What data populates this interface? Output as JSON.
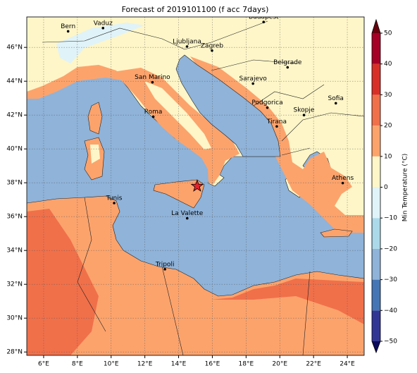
{
  "chart_data": {
    "type": "map",
    "title": "Forecast of 2019101100 (f acc 7days)",
    "xlim": [
      5,
      25
    ],
    "ylim": [
      27.8,
      47.8
    ],
    "xticks": [
      {
        "value": 6,
        "label": "6°E"
      },
      {
        "value": 8,
        "label": "8°E"
      },
      {
        "value": 10,
        "label": "10°E"
      },
      {
        "value": 12,
        "label": "12°E"
      },
      {
        "value": 14,
        "label": "14°E"
      },
      {
        "value": 16,
        "label": "16°E"
      },
      {
        "value": 18,
        "label": "18°E"
      },
      {
        "value": 20,
        "label": "20°E"
      },
      {
        "value": 22,
        "label": "22°E"
      },
      {
        "value": 24,
        "label": "24°E"
      }
    ],
    "yticks": [
      {
        "value": 28,
        "label": "28°N"
      },
      {
        "value": 30,
        "label": "30°N"
      },
      {
        "value": 32,
        "label": "32°N"
      },
      {
        "value": 34,
        "label": "34°N"
      },
      {
        "value": 36,
        "label": "36°N"
      },
      {
        "value": 38,
        "label": "38°N"
      },
      {
        "value": 40,
        "label": "40°N"
      },
      {
        "value": 42,
        "label": "42°N"
      },
      {
        "value": 44,
        "label": "44°N"
      },
      {
        "value": 46,
        "label": "46°N"
      }
    ],
    "grid": true,
    "cities": [
      {
        "name": "Bern",
        "lon": 7.45,
        "lat": 46.95
      },
      {
        "name": "Vaduz",
        "lon": 9.52,
        "lat": 47.14
      },
      {
        "name": "Budapest",
        "lon": 19.04,
        "lat": 47.5
      },
      {
        "name": "Ljubljana",
        "lon": 14.5,
        "lat": 46.05
      },
      {
        "name": "Zagreb",
        "lon": 15.98,
        "lat": 45.81
      },
      {
        "name": "Belgrade",
        "lon": 20.46,
        "lat": 44.82
      },
      {
        "name": "San Marino",
        "lon": 12.45,
        "lat": 43.94
      },
      {
        "name": "Sarajevo",
        "lon": 18.41,
        "lat": 43.86
      },
      {
        "name": "Sofia",
        "lon": 23.32,
        "lat": 42.7
      },
      {
        "name": "Podgorica",
        "lon": 19.26,
        "lat": 42.44
      },
      {
        "name": "Skopje",
        "lon": 21.43,
        "lat": 42.0
      },
      {
        "name": "Roma",
        "lon": 12.5,
        "lat": 41.9
      },
      {
        "name": "Tirana",
        "lon": 19.82,
        "lat": 41.33
      },
      {
        "name": "Athens",
        "lon": 23.73,
        "lat": 37.98
      },
      {
        "name": "Tunis",
        "lon": 10.18,
        "lat": 36.8
      },
      {
        "name": "La Valette",
        "lon": 14.51,
        "lat": 35.9
      },
      {
        "name": "Tripoli",
        "lon": 13.19,
        "lat": 32.89
      }
    ],
    "marker": {
      "lon": 15.1,
      "lat": 37.8,
      "color": "#e8212b"
    },
    "colorbar": {
      "label": "Min Temperature (°C)",
      "lim": [
        -50,
        50
      ],
      "ticks": [
        {
          "value": -50,
          "label": "−50"
        },
        {
          "value": -40,
          "label": "−40"
        },
        {
          "value": -30,
          "label": "−30"
        },
        {
          "value": -20,
          "label": "−20"
        },
        {
          "value": -10,
          "label": "−10"
        },
        0,
        10,
        20,
        30,
        40,
        50
      ],
      "bounds": [
        -50,
        -40,
        -30,
        -20,
        -10,
        0,
        10,
        20,
        30,
        40,
        50
      ],
      "colors": [
        "#313695",
        "#4575b4",
        "#8fb3d9",
        "#abd9e9",
        "#e0f3f8",
        "#fef6c8",
        "#fca36c",
        "#f0704a",
        "#d73027",
        "#a50026"
      ],
      "extend_colors": [
        "#0a0a5c",
        "#67000d"
      ]
    }
  }
}
